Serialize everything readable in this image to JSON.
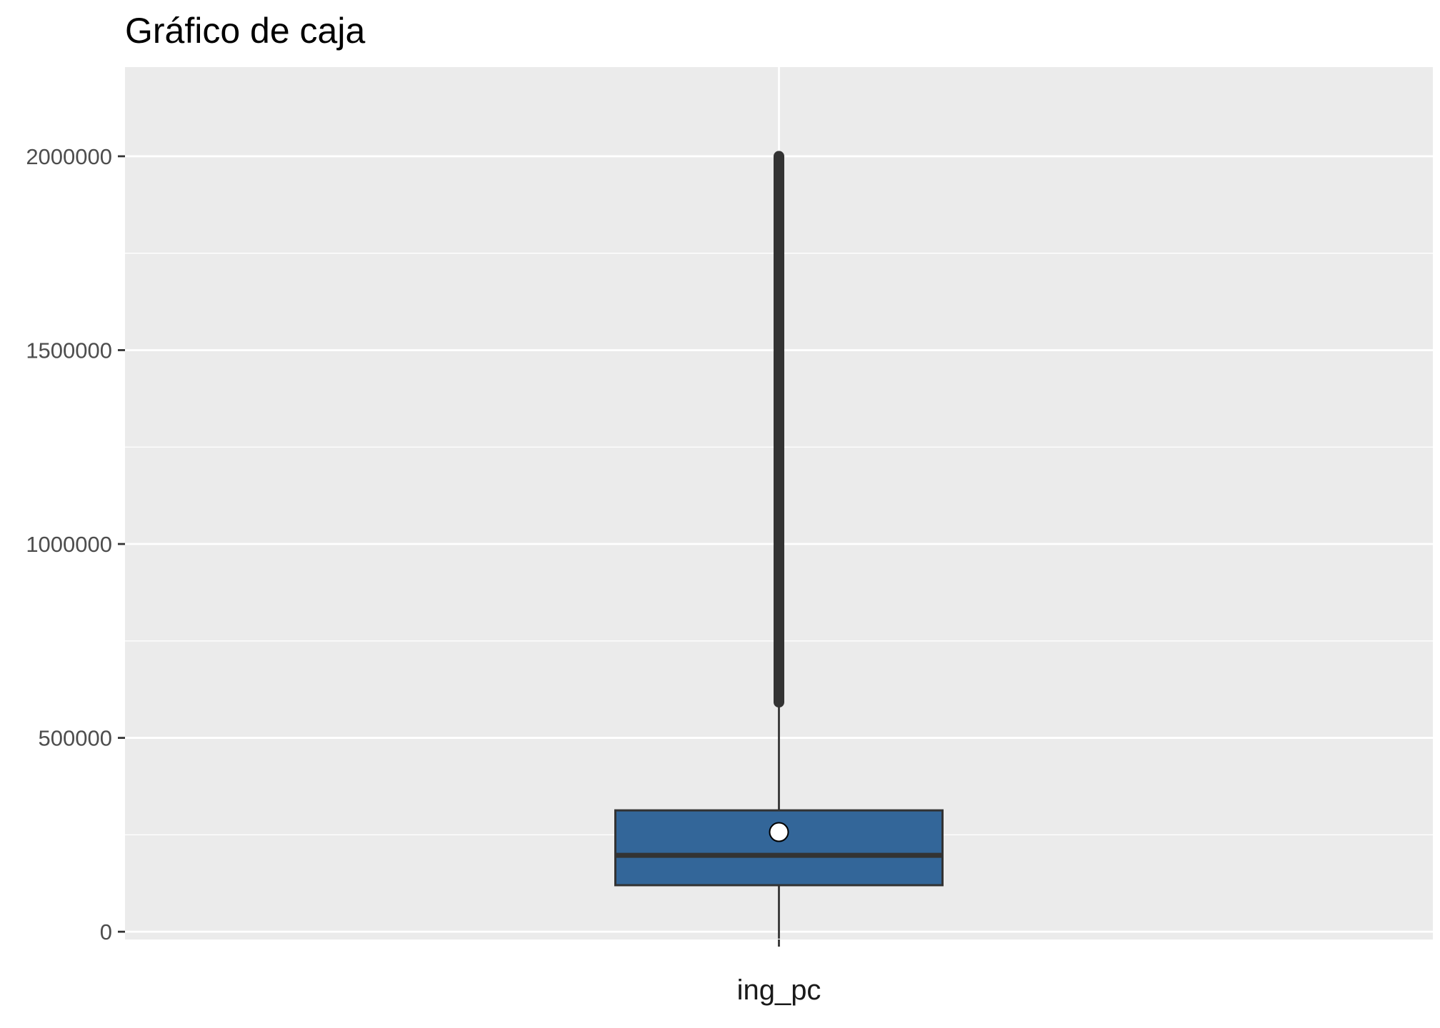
{
  "chart_data": {
    "type": "box",
    "title": "Gráfico de caja",
    "xlabel": "",
    "ylabel": "",
    "categories": [
      "ing_pc"
    ],
    "y_ticks": [
      0,
      500000,
      1000000,
      1500000,
      2000000
    ],
    "y_tick_labels": [
      "0",
      "500000",
      "1000000",
      "1500000",
      "2000000"
    ],
    "ylim": [
      -20000,
      2230000
    ],
    "grid": true,
    "legend": "none",
    "box": {
      "category": "ing_pc",
      "min": -18000,
      "q1": 120000,
      "median": 197000,
      "q3": 313000,
      "whisker_high": 592000,
      "mean": 257000,
      "outliers_from": 592000,
      "outliers_to": 2000000
    },
    "colors": {
      "panel_bg": "#ebebeb",
      "grid": "#ffffff",
      "box_fill": "#336699",
      "outline": "#333333",
      "mean_fill": "#ffffff"
    }
  }
}
